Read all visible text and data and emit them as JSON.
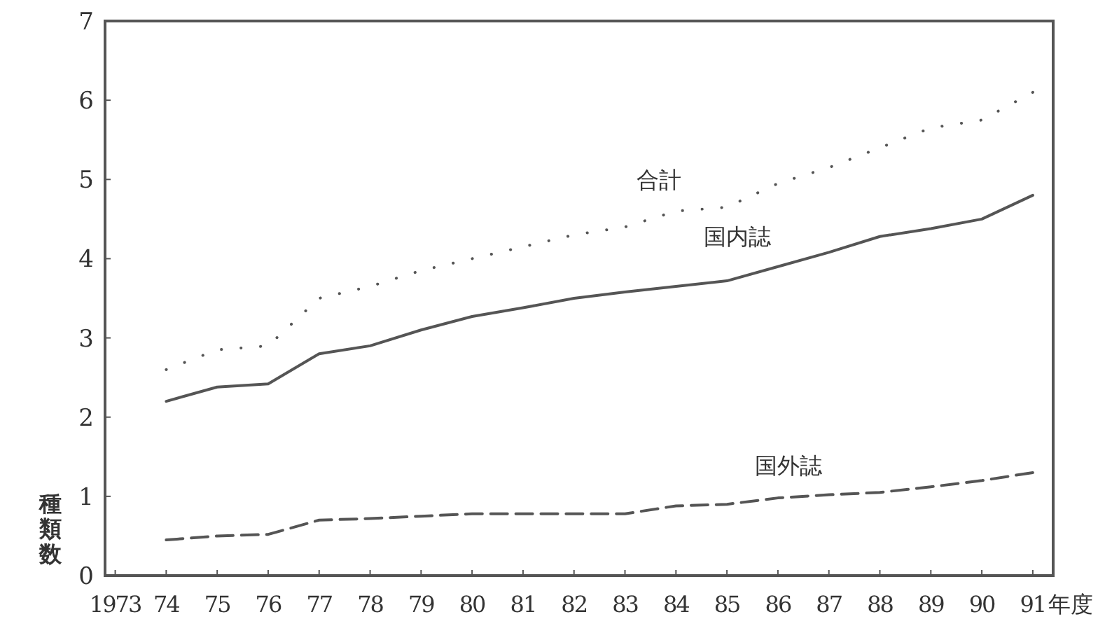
{
  "chart_data": {
    "type": "line",
    "ylabel": "種類数",
    "x": [
      1974,
      1975,
      1976,
      1977,
      1978,
      1979,
      1980,
      1981,
      1982,
      1983,
      1984,
      1985,
      1986,
      1987,
      1988,
      1989,
      1990,
      1991
    ],
    "series": [
      {
        "name": "合計",
        "color": "#555555",
        "line_style": "dotted",
        "values": [
          2.6,
          2.85,
          2.9,
          3.5,
          3.65,
          3.85,
          4.0,
          4.15,
          4.3,
          4.4,
          4.6,
          4.65,
          4.95,
          5.15,
          5.4,
          5.65,
          5.75,
          6.1
        ]
      },
      {
        "name": "国内誌",
        "color": "#555555",
        "line_style": "solid",
        "values": [
          2.2,
          2.38,
          2.42,
          2.8,
          2.9,
          3.1,
          3.27,
          3.38,
          3.5,
          3.58,
          3.65,
          3.72,
          3.9,
          4.08,
          4.28,
          4.38,
          4.5,
          4.8
        ]
      },
      {
        "name": "国外誌",
        "color": "#555555",
        "line_style": "dashed",
        "values": [
          0.45,
          0.5,
          0.52,
          0.7,
          0.72,
          0.75,
          0.78,
          0.78,
          0.78,
          0.78,
          0.88,
          0.9,
          0.98,
          1.02,
          1.05,
          1.12,
          1.2,
          1.3
        ]
      }
    ],
    "xlim": [
      1972.8,
      1991.4
    ],
    "xticks": [
      1973,
      {
        "value": 1974,
        "label": "74"
      },
      {
        "value": 1975,
        "label": "75"
      },
      {
        "value": 1976,
        "label": "76"
      },
      {
        "value": 1977,
        "label": "77"
      },
      {
        "value": 1978,
        "label": "78"
      },
      {
        "value": 1979,
        "label": "79"
      },
      {
        "value": 1980,
        "label": "80"
      },
      {
        "value": 1981,
        "label": "81"
      },
      {
        "value": 1982,
        "label": "82"
      },
      {
        "value": 1983,
        "label": "83"
      },
      {
        "value": 1984,
        "label": "84"
      },
      {
        "value": 1985,
        "label": "85"
      },
      {
        "value": 1986,
        "label": "86"
      },
      {
        "value": 1987,
        "label": "87"
      },
      {
        "value": 1988,
        "label": "88"
      },
      {
        "value": 1989,
        "label": "89"
      },
      {
        "value": 1990,
        "label": "90"
      },
      {
        "value": 1991,
        "label": "91"
      }
    ],
    "xlabel": "年度",
    "ylim": [
      0,
      7
    ],
    "yticks": [
      0,
      1,
      2,
      3,
      4,
      5,
      6,
      7
    ],
    "grid": false,
    "legend": false,
    "marker": "none"
  }
}
